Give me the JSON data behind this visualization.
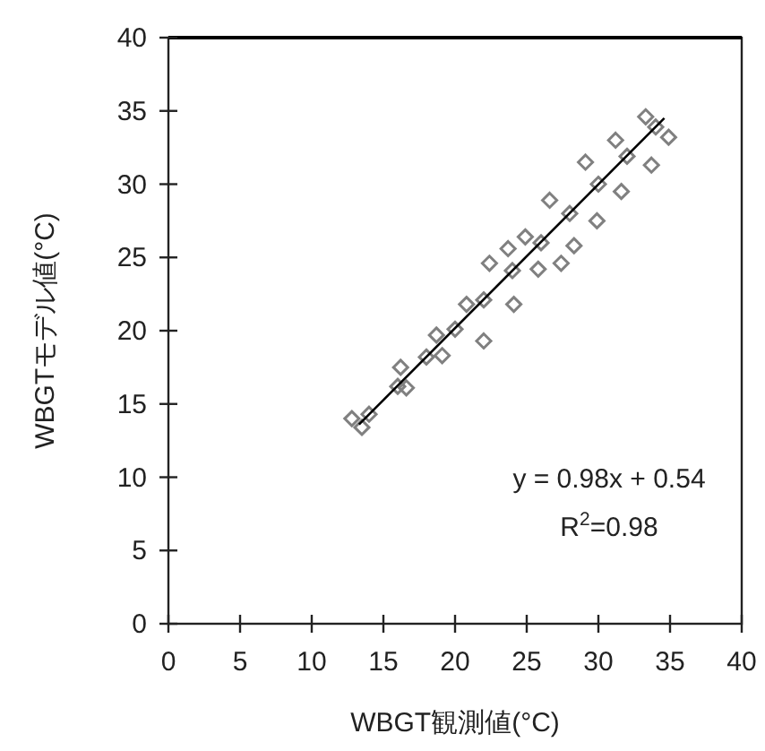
{
  "chart_data": {
    "type": "scatter",
    "xlabel": "WBGT観測値(°C)",
    "ylabel": "WBGTモデル値(°C)",
    "xlim": [
      0,
      40
    ],
    "ylim": [
      0,
      40
    ],
    "xticks": [
      0,
      5,
      10,
      15,
      20,
      25,
      30,
      35,
      40
    ],
    "yticks": [
      0,
      5,
      10,
      15,
      20,
      25,
      30,
      35,
      40
    ],
    "marker": "diamond",
    "grid": false,
    "series": [
      {
        "color": "#808080",
        "x": [
          12.8,
          16.2,
          18.7,
          20.8,
          22.4,
          23.7,
          24.9,
          26.6,
          29.1,
          31.2,
          33.3,
          13.5,
          16.6,
          19.1,
          22.0,
          24.1,
          25.8,
          27.4,
          28.3,
          29.9,
          31.6,
          33.7,
          34.9,
          14,
          16,
          18,
          20,
          22,
          24,
          26,
          28,
          30,
          32,
          34
        ],
        "values": [
          14.0,
          17.5,
          19.7,
          21.8,
          24.6,
          25.6,
          26.4,
          28.9,
          31.5,
          33.0,
          34.6,
          13.4,
          16.1,
          18.3,
          19.3,
          21.8,
          24.2,
          24.6,
          25.8,
          27.5,
          29.5,
          31.3,
          33.2,
          14.3,
          16.2,
          18.2,
          20.1,
          22.1,
          24.1,
          26.0,
          28.0,
          30.0,
          31.9,
          33.9
        ]
      },
      {
        "type": "line",
        "marker": "none",
        "color": "#000000",
        "x": [
          13.3,
          34.6
        ],
        "values": [
          13.6,
          34.5
        ]
      }
    ],
    "annotations": [
      "y = 0.98x + 0.54",
      "R$^{2}$=0.98"
    ]
  }
}
